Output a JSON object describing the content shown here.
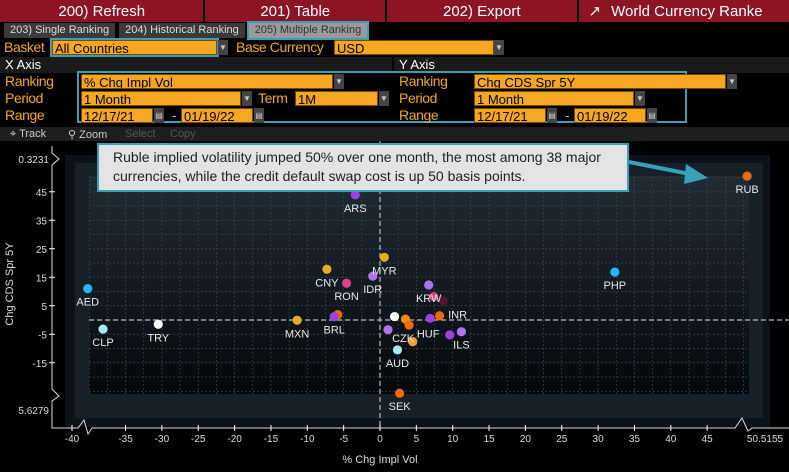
{
  "toolbar": {
    "refresh": "200) Refresh",
    "table": "201) Table",
    "export": "202) Export",
    "title": "World Currency Ranke"
  },
  "tabs": [
    "203) Single Ranking",
    "204) Historical Ranking",
    "205) Multiple Ranking"
  ],
  "basket": {
    "label": "Basket",
    "value": "All Countries",
    "base_label": "Base Currency",
    "base_value": "USD"
  },
  "x_axis": {
    "header": "X Axis",
    "ranking_label": "Ranking",
    "ranking": "% Chg Impl Vol",
    "period_label": "Period",
    "period": "1 Month",
    "term_label": "Term",
    "term": "1M",
    "range_label": "Range",
    "from": "12/17/21",
    "to": "01/19/22"
  },
  "y_axis": {
    "header": "Y Axis",
    "ranking_label": "Ranking",
    "ranking": "Chg CDS Spr 5Y",
    "period_label": "Period",
    "period": "1 Month",
    "range_label": "Range",
    "from": "12/17/21",
    "to": "01/19/22"
  },
  "chart_tools": [
    "Track",
    "Zoom",
    "Select",
    "Copy"
  ],
  "callout": "Ruble implied volatility jumped 50% over one month, the most among 38 major currencies, while the credit default swap cost is up 50 basis points.",
  "chart_data": {
    "type": "scatter",
    "xlabel": "% Chg Impl Vol",
    "ylabel": "Chg CDS Spr 5Y",
    "xlim": [
      -40,
      50.5155
    ],
    "ylim_labels": {
      "top": "0.3231",
      "bottom": "5.6279"
    },
    "xticks": [
      -40,
      -35,
      -30,
      -25,
      -20,
      -15,
      -10,
      -5,
      0,
      5,
      10,
      15,
      20,
      25,
      30,
      35,
      40,
      45
    ],
    "xmax_label": "50.5155",
    "yticks": [
      45,
      35,
      25,
      15,
      5,
      -5,
      -15
    ],
    "points": [
      {
        "label": "RUB",
        "x": 50.5,
        "y": 50.5,
        "color": "#f06a0a"
      },
      {
        "label": "PHP",
        "x": 32.3,
        "y": 16.8,
        "color": "#22b8f0"
      },
      {
        "label": "ARS",
        "x": -3.4,
        "y": 43.9,
        "color": "#a040e0"
      },
      {
        "label": "MYR",
        "x": 0.6,
        "y": 22,
        "color": "#e0b020"
      },
      {
        "label": "CNY",
        "x": -7.3,
        "y": 17.8,
        "color": "#e0b020"
      },
      {
        "label": "RON",
        "x": -4.6,
        "y": 12.9,
        "color": "#e0408a"
      },
      {
        "label": "IDR",
        "x": -1,
        "y": 15.4,
        "color": "#b070f0"
      },
      {
        "label": "AED",
        "x": -40.2,
        "y": 11,
        "color": "#22b8f0"
      },
      {
        "label": "CLP",
        "x": -38.1,
        "y": -3.2,
        "color": "#a8e8f0"
      },
      {
        "label": "TRY",
        "x": -30.5,
        "y": -1.5,
        "color": "#ffffff"
      },
      {
        "label": "MXN",
        "x": -11.4,
        "y": -0.1,
        "color": "#e0b020"
      },
      {
        "label": "",
        "x": -5.8,
        "y": 1.9,
        "color": "#f06a0a"
      },
      {
        "label": "BRL",
        "x": -6.3,
        "y": 1.2,
        "color": "#a040e0"
      },
      {
        "label": "",
        "x": 2,
        "y": 1.2,
        "color": "#ffffff"
      },
      {
        "label": "",
        "x": 1.1,
        "y": -3.4,
        "color": "#b070f0"
      },
      {
        "label": "",
        "x": 3.5,
        "y": 0.3,
        "color": "#f08a10"
      },
      {
        "label": "CZK",
        "x": 4,
        "y": -1.8,
        "color": "#f06a0a"
      },
      {
        "label": "",
        "x": 4.5,
        "y": -7.6,
        "color": "#f5a030"
      },
      {
        "label": "AUD",
        "x": 2.4,
        "y": -10.5,
        "color": "#a8e8f0"
      },
      {
        "label": "SEK",
        "x": 2.7,
        "y": -25.7,
        "color": "#f06a0a"
      },
      {
        "label": "KRW",
        "x": 6.7,
        "y": 12.3,
        "color": "#b070f0"
      },
      {
        "label": "",
        "x": 7.4,
        "y": 8.2,
        "color": "#e0408a"
      },
      {
        "label": "",
        "x": 8.7,
        "y": 6.7,
        "color": "#5a1030"
      },
      {
        "label": "INR",
        "x": 8.2,
        "y": 1.5,
        "color": "#f06a0a"
      },
      {
        "label": "HUF",
        "x": 6.9,
        "y": 0.6,
        "color": "#a040e0"
      },
      {
        "label": "",
        "x": 9.6,
        "y": -5.2,
        "color": "#a040e0"
      },
      {
        "label": "ILS",
        "x": 11.2,
        "y": -4.1,
        "color": "#b070f0"
      }
    ]
  }
}
